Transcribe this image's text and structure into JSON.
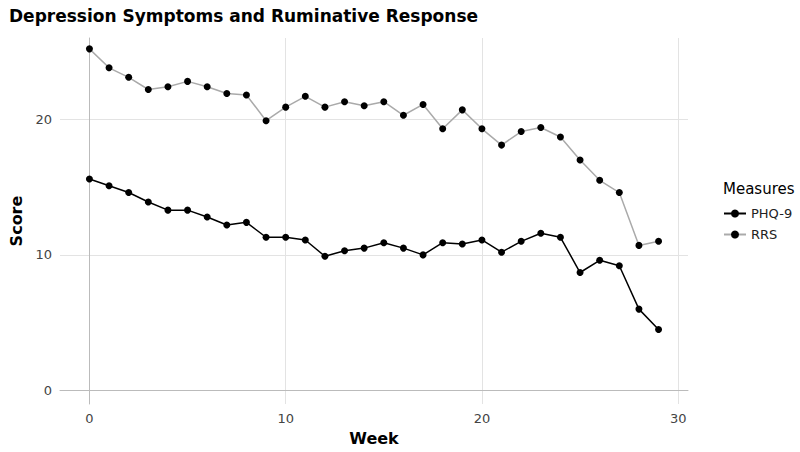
{
  "chart_data": {
    "type": "line",
    "title": "Depression Symptoms and Ruminative Response",
    "x_label": "Week",
    "y_label": "Score",
    "legend_title": "Measures",
    "legend": "right",
    "grid": true,
    "marker": "circle",
    "x": [
      0,
      1,
      2,
      3,
      4,
      5,
      6,
      7,
      8,
      9,
      10,
      11,
      12,
      13,
      14,
      15,
      16,
      17,
      18,
      19,
      20,
      21,
      22,
      23,
      24,
      25,
      26,
      27,
      28,
      29
    ],
    "series": [
      {
        "name": "PHQ-9",
        "color": "#000000",
        "values": [
          15.6,
          15.1,
          14.6,
          13.9,
          13.3,
          13.3,
          12.8,
          12.2,
          12.4,
          11.3,
          11.3,
          11.1,
          9.9,
          10.3,
          10.5,
          10.9,
          10.5,
          10.0,
          10.9,
          10.8,
          11.1,
          10.2,
          11.0,
          11.6,
          11.3,
          8.7,
          9.6,
          9.2,
          6.0,
          4.5
        ]
      },
      {
        "name": "RRS",
        "color": "#aaaaaa",
        "values": [
          25.2,
          23.8,
          23.1,
          22.2,
          22.4,
          22.8,
          22.4,
          21.9,
          21.8,
          19.9,
          20.9,
          21.7,
          20.9,
          21.3,
          21.0,
          21.3,
          20.3,
          21.1,
          19.3,
          20.7,
          19.3,
          18.1,
          19.1,
          19.4,
          18.7,
          17.0,
          15.5,
          14.6,
          10.7,
          11.0
        ]
      }
    ],
    "xlim": [
      -1.5,
      30.5
    ],
    "xticks": [
      0,
      10,
      20,
      30
    ],
    "ylim": [
      -1,
      26
    ],
    "yticks": [
      0,
      10,
      20
    ]
  }
}
